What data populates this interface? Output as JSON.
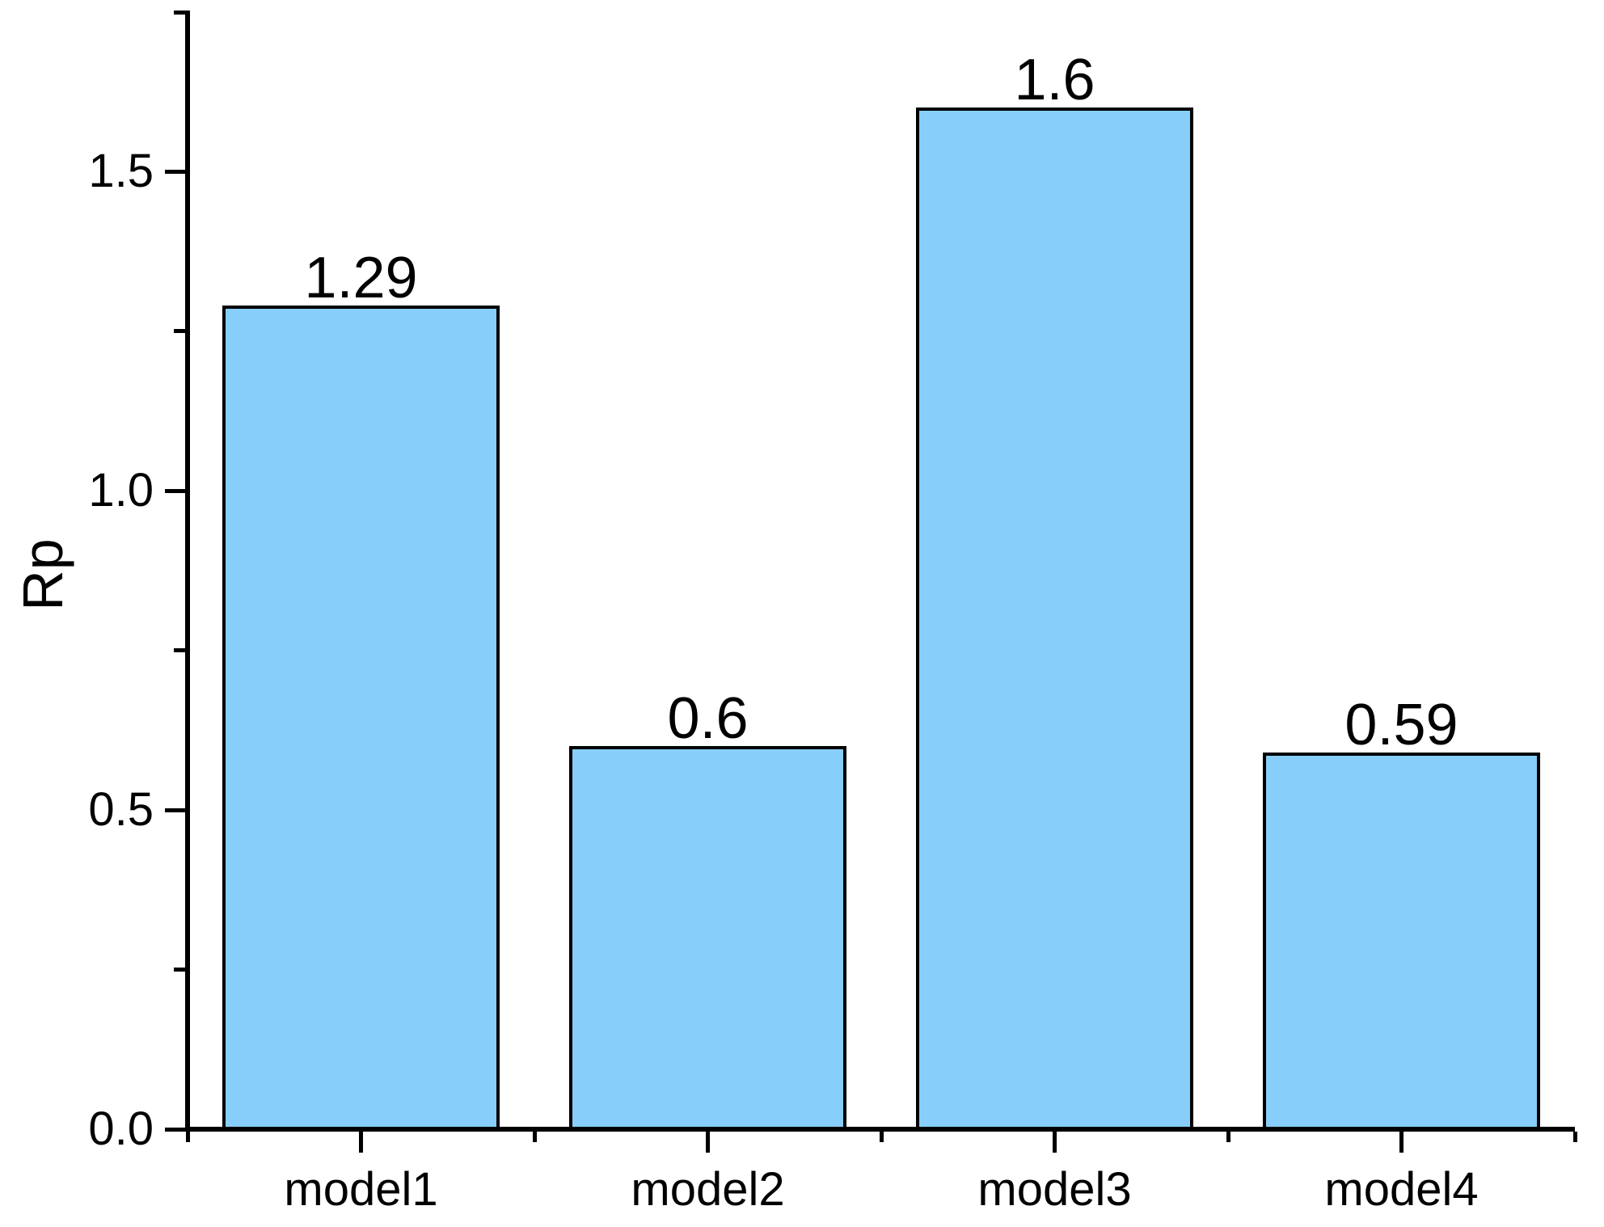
{
  "chart_data": {
    "type": "bar",
    "title": "",
    "categories": [
      "model1",
      "model2",
      "model3",
      "model4"
    ],
    "values": [
      1.29,
      0.6,
      1.6,
      0.59
    ],
    "bar_labels": [
      "1.29",
      "0.6",
      "1.6",
      "0.59"
    ],
    "xlabel": "",
    "ylabel": "Rp",
    "ylim": [
      0,
      1.75
    ],
    "y_major_ticks": [
      0,
      0.5,
      1,
      1.5
    ],
    "y_major_tick_labels": [
      "0.0",
      "0.5",
      "1.0",
      "1.5"
    ],
    "y_minor_ticks": [
      0.25,
      0.75,
      1.25,
      1.75
    ],
    "grid": false,
    "legend": "none",
    "layout_hints": {
      "bars_per_slot_fraction": 0.8,
      "x_major_ticks_at": "category centers",
      "x_minor_ticks_at": "category boundaries",
      "tick_direction": "outside"
    },
    "colors": {
      "bar_fill": "#87CEFA",
      "bar_border": "#000000",
      "axis": "#000000",
      "text": "#000000",
      "background": "#FFFFFF"
    }
  }
}
